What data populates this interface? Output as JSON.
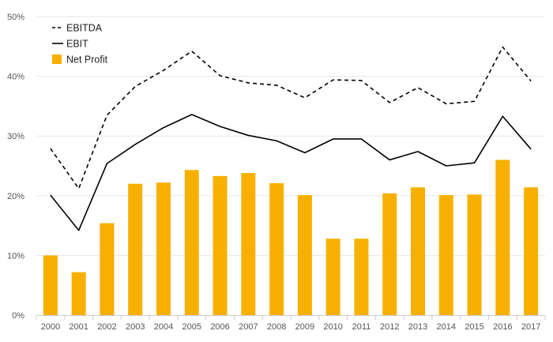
{
  "chart_data": {
    "type": "bar",
    "categories": [
      "2000",
      "2001",
      "2002",
      "2003",
      "2004",
      "2005",
      "2006",
      "2007",
      "2008",
      "2009",
      "2010",
      "2011",
      "2012",
      "2013",
      "2014",
      "2015",
      "2016",
      "2017"
    ],
    "ylim": [
      0,
      50
    ],
    "yticks": [
      0,
      10,
      20,
      30,
      40,
      50
    ],
    "ytick_labels": [
      "0%",
      "10%",
      "20%",
      "30%",
      "40%",
      "50%"
    ],
    "grid": true,
    "legend_position": "top-left",
    "series": [
      {
        "name": "EBITDA",
        "type": "line",
        "style": "dashed",
        "color": "#000000",
        "values": [
          27.9,
          21.2,
          33.5,
          38.3,
          41.0,
          44.2,
          40.1,
          38.9,
          38.5,
          36.4,
          39.4,
          39.3,
          35.6,
          38.1,
          35.4,
          35.8,
          44.9,
          39.2
        ]
      },
      {
        "name": "EBIT",
        "type": "line",
        "style": "solid",
        "color": "#000000",
        "values": [
          20.1,
          14.2,
          25.4,
          28.6,
          31.4,
          33.6,
          31.6,
          30.1,
          29.2,
          27.2,
          29.5,
          29.5,
          26.0,
          27.4,
          25.0,
          25.5,
          33.3,
          27.8
        ]
      },
      {
        "name": "Net Profit",
        "type": "bar",
        "color": "#F7B000",
        "values": [
          10.0,
          7.2,
          15.4,
          22.0,
          22.2,
          24.3,
          23.3,
          23.8,
          22.1,
          20.1,
          12.8,
          12.8,
          20.4,
          21.4,
          20.1,
          20.2,
          26.0,
          21.4
        ]
      }
    ]
  }
}
